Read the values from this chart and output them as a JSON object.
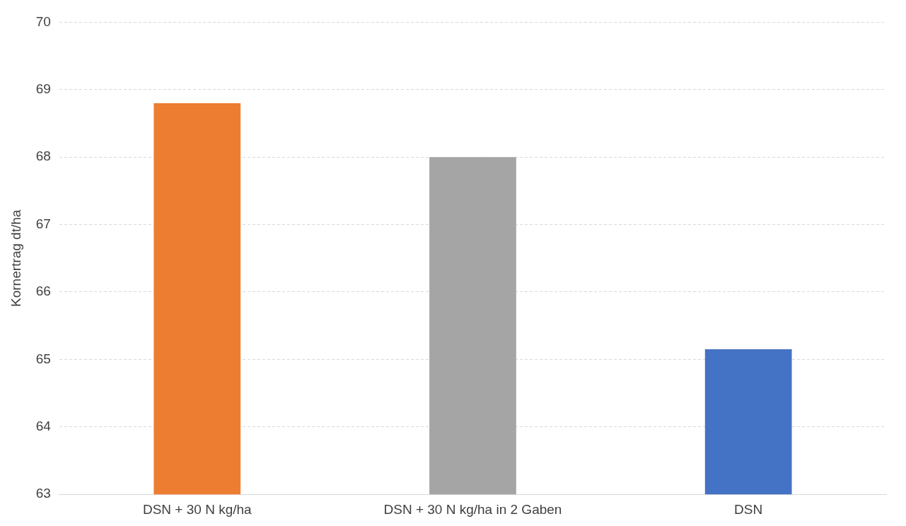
{
  "chart_data": {
    "type": "bar",
    "ylabel": "Kornertrag dt/ha",
    "categories": [
      "DSN + 30 N kg/ha",
      "DSN + 30 N kg/ha in 2 Gaben",
      "DSN"
    ],
    "values": [
      68.8,
      68.0,
      65.15
    ],
    "colors": [
      "#ed7d31",
      "#a5a5a5",
      "#4472c4"
    ],
    "ylim": [
      63,
      70
    ],
    "yticks": [
      63,
      64,
      65,
      66,
      67,
      68,
      69,
      70
    ],
    "grid": "y"
  }
}
